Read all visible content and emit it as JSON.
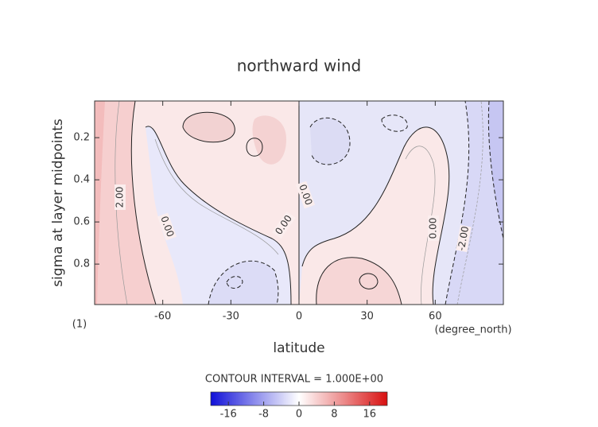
{
  "chart_data": {
    "type": "contour",
    "title": "northward wind",
    "x_label": "latitude",
    "y_label": "sigma at layer midpoints",
    "x_units": "(degree_north)",
    "corner_label": "(1)",
    "xlim": [
      -90,
      90
    ],
    "xticks": [
      -60,
      -30,
      0,
      30,
      60
    ],
    "ylim": [
      0.992,
      0.026
    ],
    "yticks": [
      0.2,
      0.4,
      0.6,
      0.8
    ],
    "contour_labels": [
      {
        "value": 2,
        "label": "2.00"
      },
      {
        "value": 0,
        "label": "0.00"
      },
      {
        "value": 0,
        "label": "0.00"
      },
      {
        "value": 0,
        "label": "0.00"
      },
      {
        "value": 0,
        "label": "0.00"
      },
      {
        "value": -2,
        "label": "-2.00"
      }
    ],
    "contour_interval_text": "CONTOUR INTERVAL = 1.000E+00",
    "colorbar": {
      "lim": [
        -20,
        20
      ],
      "ticks": [
        -16,
        -8,
        0,
        8,
        16
      ]
    }
  }
}
